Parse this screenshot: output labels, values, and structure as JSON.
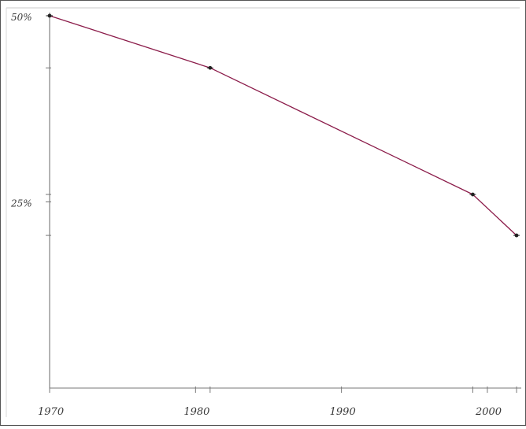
{
  "chart_data": {
    "type": "line",
    "x": [
      1970,
      1981,
      1999,
      2002
    ],
    "series": [
      {
        "values": [
          50,
          43,
          26,
          20.5
        ]
      }
    ],
    "xlim": [
      1970,
      2002
    ],
    "ylim": [
      0,
      50
    ],
    "x_ticks": [
      {
        "value": 1970,
        "label": "1970"
      },
      {
        "value": 1980,
        "label": "1980"
      },
      {
        "value": 1990,
        "label": "1990"
      },
      {
        "value": 2000,
        "label": "2000"
      }
    ],
    "y_ticks": [
      {
        "value": 50,
        "label": "50%"
      },
      {
        "value": 25,
        "label": "25%"
      }
    ],
    "grid": false,
    "line_color": "#8b1c4a",
    "title": "",
    "xlabel": "",
    "ylabel": ""
  }
}
